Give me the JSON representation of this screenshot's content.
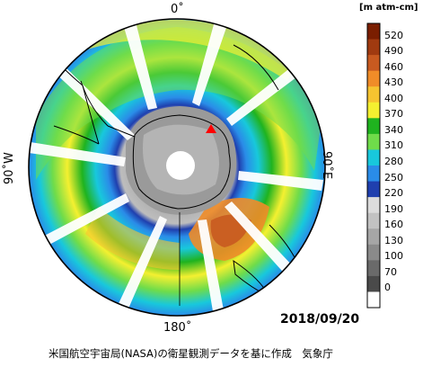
{
  "labels": {
    "top": "0˚",
    "left": "90˚W",
    "right": "90˚E",
    "bottom": "180˚",
    "unit": "[m atm-cm]",
    "date": "2018/09/20",
    "credit": "米国航空宇宙局(NASA)の衛星観測データを基に作成　気象庁"
  },
  "colorbar": {
    "ticks": [
      "520",
      "490",
      "460",
      "430",
      "400",
      "370",
      "340",
      "310",
      "280",
      "250",
      "220",
      "190",
      "160",
      "130",
      "100",
      "70",
      "0"
    ],
    "colors": [
      "#ffffff",
      "#4a4a4a",
      "#6a6a6a",
      "#8a8a8a",
      "#a6a6a6",
      "#c2c2c2",
      "#dcdcdc",
      "#1f3fae",
      "#2a8ce8",
      "#18c8dc",
      "#6fdc4a",
      "#1fb31f",
      "#f4f030",
      "#f6c430",
      "#f08c28",
      "#c85a20",
      "#a03a10",
      "#7a1e00"
    ]
  },
  "colors": {
    "triangle": "#ff0000"
  }
}
